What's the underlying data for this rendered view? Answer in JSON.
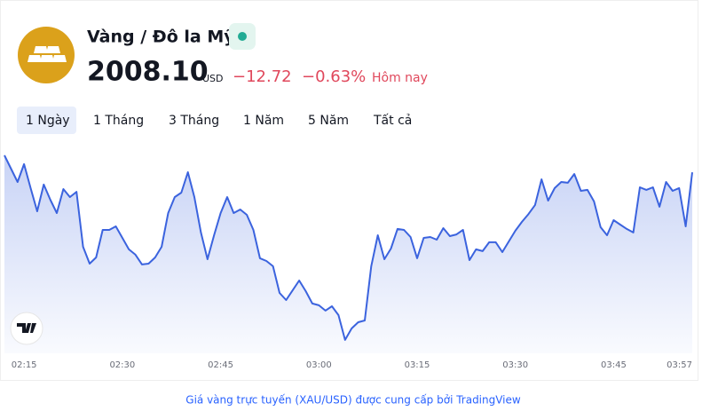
{
  "header": {
    "title": "Vàng / Đô la Mỹ",
    "price": "2008.10",
    "currency": "USD",
    "change": "−12.72",
    "change_percent": "−0.63%",
    "period": "Hôm nay"
  },
  "tabs": [
    "1 Ngày",
    "1 Tháng",
    "3 Tháng",
    "1 Năm",
    "5 Năm",
    "Tất cả"
  ],
  "chart_data": {
    "type": "line",
    "color": "#3b63de",
    "x": [
      "02:12",
      "02:13",
      "02:14",
      "02:15",
      "02:16",
      "02:17",
      "02:18",
      "02:19",
      "02:20",
      "02:21",
      "02:22",
      "02:23",
      "02:24",
      "02:25",
      "02:26",
      "02:27",
      "02:28",
      "02:29",
      "02:30",
      "02:31",
      "02:32",
      "02:33",
      "02:34",
      "02:35",
      "02:36",
      "02:37",
      "02:38",
      "02:39",
      "02:40",
      "02:41",
      "02:42",
      "02:43",
      "02:44",
      "02:45",
      "02:46",
      "02:47",
      "02:48",
      "02:49",
      "02:50",
      "02:51",
      "02:52",
      "02:53",
      "02:54",
      "02:55",
      "02:56",
      "02:57",
      "02:58",
      "02:59",
      "03:00",
      "03:01",
      "03:02",
      "03:03",
      "03:04",
      "03:05",
      "03:06",
      "03:07",
      "03:08",
      "03:09",
      "03:10",
      "03:11",
      "03:12",
      "03:13",
      "03:14",
      "03:15",
      "03:16",
      "03:17",
      "03:18",
      "03:19",
      "03:20",
      "03:21",
      "03:22",
      "03:23",
      "03:24",
      "03:25",
      "03:26",
      "03:27",
      "03:28",
      "03:29",
      "03:30",
      "03:31",
      "03:32",
      "03:33",
      "03:34",
      "03:35",
      "03:36",
      "03:37",
      "03:38",
      "03:39",
      "03:40",
      "03:41",
      "03:42",
      "03:43",
      "03:44",
      "03:45",
      "03:46",
      "03:47",
      "03:48",
      "03:49",
      "03:50",
      "03:51",
      "03:52",
      "03:53",
      "03:54",
      "03:55",
      "03:56",
      "03:57"
    ],
    "values": [
      2009.35,
      2008.37,
      2007.39,
      2008.7,
      2006.94,
      2005.24,
      2007.2,
      2006.09,
      2005.11,
      2006.87,
      2006.28,
      2006.67,
      2002.63,
      2001.39,
      2001.85,
      2003.87,
      2003.87,
      2004.13,
      2003.28,
      2002.44,
      2002.05,
      2001.33,
      2001.39,
      2001.85,
      2002.63,
      2005.11,
      2006.28,
      2006.61,
      2008.11,
      2006.28,
      2003.68,
      2001.72,
      2003.48,
      2005.11,
      2006.28,
      2005.11,
      2005.37,
      2004.98,
      2003.87,
      2001.79,
      2001.59,
      2001.2,
      1999.24,
      1998.72,
      1999.44,
      2000.15,
      1999.37,
      1998.46,
      1998.33,
      1997.94,
      1998.26,
      1997.61,
      1995.79,
      1996.63,
      1997.09,
      1997.22,
      2001.2,
      2003.48,
      2001.72,
      2002.5,
      2003.94,
      2003.87,
      2003.35,
      2001.79,
      2003.28,
      2003.35,
      2003.15,
      2004.0,
      2003.41,
      2003.54,
      2003.87,
      2001.65,
      2002.44,
      2002.31,
      2002.96,
      2002.96,
      2002.24,
      2003.02,
      2003.81,
      2004.46,
      2005.04,
      2005.7,
      2007.59,
      2006.02,
      2006.94,
      2007.39,
      2007.33,
      2007.98,
      2006.74,
      2006.81,
      2005.96,
      2004.07,
      2003.48,
      2004.59,
      2004.26,
      2003.94,
      2003.68,
      2007.0,
      2006.81,
      2007.0,
      2005.57,
      2007.39,
      2006.74,
      2006.94,
      2004.13,
      2008.1
    ],
    "xlim": [
      "02:12",
      "03:57"
    ],
    "xticks": [
      "02:15",
      "02:30",
      "02:45",
      "03:00",
      "03:15",
      "03:30",
      "03:45",
      "03:57"
    ],
    "ylim": [
      1995,
      2010
    ]
  },
  "footer": "Giá vàng trực tuyến (XAU/USD) được cung cấp bởi TradingView"
}
